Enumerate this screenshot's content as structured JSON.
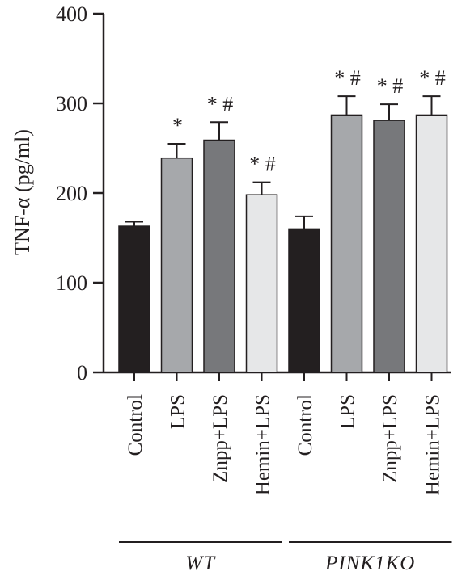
{
  "chart_data": {
    "type": "bar",
    "ylabel": "TNF-α (pg/ml)",
    "ylim": [
      0,
      400
    ],
    "yticks": [
      0,
      100,
      200,
      300,
      400
    ],
    "groups": [
      {
        "label": "WT",
        "start": 0,
        "end": 3
      },
      {
        "label": "PINK1KO",
        "start": 4,
        "end": 7
      }
    ],
    "categories": [
      "Control",
      "LPS",
      "Znpp+LPS",
      "Hemin+LPS",
      "Control",
      "LPS",
      "Znpp+LPS",
      "Hemin+LPS"
    ],
    "values": [
      163,
      239,
      259,
      198,
      160,
      287,
      281,
      287
    ],
    "errors": [
      5,
      16,
      20,
      14,
      14,
      21,
      18,
      21
    ],
    "significance": [
      "",
      "*",
      "*#",
      "*#",
      "",
      "*#",
      "*#",
      "*#"
    ],
    "colors": [
      "#231f20",
      "#a6a8ab",
      "#77787b",
      "#e6e7e8",
      "#231f20",
      "#a6a8ab",
      "#77787b",
      "#e6e7e8"
    ]
  }
}
